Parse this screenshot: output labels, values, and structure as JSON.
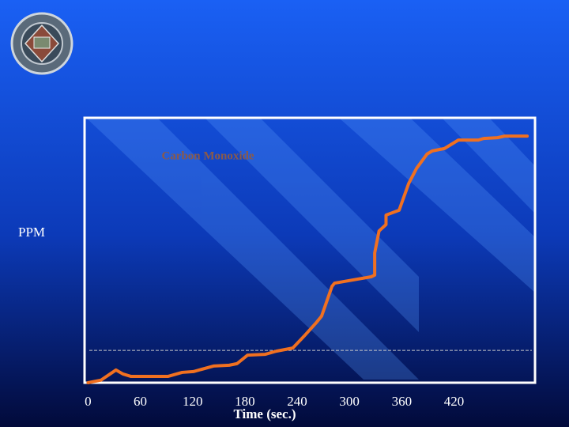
{
  "chart_data": {
    "type": "line",
    "title": "Carbon Monoxide",
    "xlabel": "Time (sec.)",
    "ylabel": "PPM",
    "x": [
      0,
      15,
      32,
      40,
      49,
      92,
      108,
      121,
      144,
      162,
      171,
      183,
      203,
      216,
      235,
      248,
      262,
      268,
      280,
      283,
      325,
      329,
      329,
      334,
      342,
      342,
      357,
      368,
      377,
      389,
      395,
      409,
      425,
      448,
      454,
      470,
      478,
      504
    ],
    "series": [
      {
        "name": "Carbon Monoxide",
        "color": "#f07020",
        "values": [
          0,
          1,
          4.8,
          3.3,
          2.4,
          2.4,
          3.9,
          4.2,
          6.3,
          6.6,
          7.2,
          10.4,
          10.7,
          11.9,
          13.1,
          17.6,
          22.7,
          25.1,
          36.4,
          37.6,
          40,
          40.6,
          49,
          57.3,
          59.7,
          63.3,
          65.1,
          75.2,
          80.9,
          86.3,
          87.5,
          88.4,
          91.6,
          91.6,
          92.2,
          92.5,
          93.1,
          93.1
        ]
      }
    ],
    "reference_line": 12.2,
    "xlim": [
      -4,
      513
    ],
    "ylim": [
      0,
      100
    ],
    "xticks": [
      0,
      60,
      120,
      180,
      240,
      300,
      360,
      420
    ]
  }
}
